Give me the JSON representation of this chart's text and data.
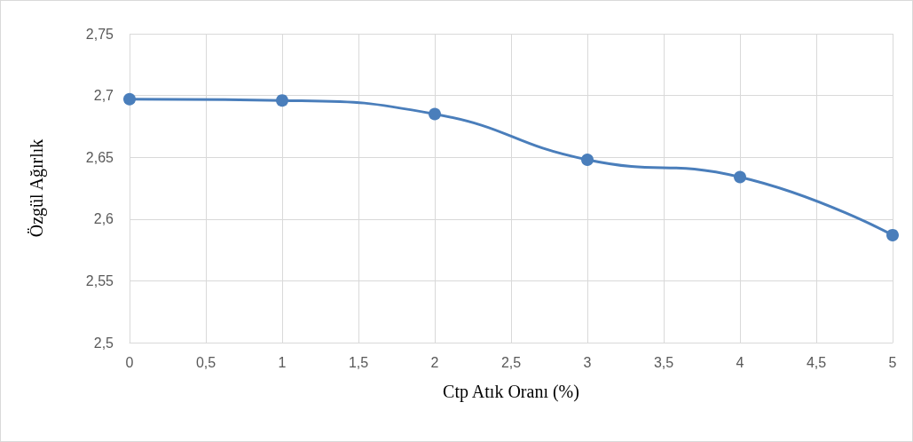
{
  "chart_data": {
    "type": "line",
    "xlabel": "Ctp Atık Oranı (%)",
    "ylabel": "Özgül Ağırlık",
    "x": [
      0,
      1,
      2,
      3,
      4,
      5
    ],
    "series": [
      {
        "color": "#4a7ebb",
        "values": [
          2.697,
          2.696,
          2.685,
          2.648,
          2.634,
          2.587
        ]
      }
    ],
    "xlim": [
      0,
      5
    ],
    "xticks": [
      0,
      {
        "value": 0.5,
        "label": "0,5"
      },
      1,
      {
        "value": 1.5,
        "label": "1,5"
      },
      2,
      {
        "value": 2.5,
        "label": "2,5"
      },
      3,
      {
        "value": 3.5,
        "label": "3,5"
      },
      4,
      {
        "value": 4.5,
        "label": "4,5"
      },
      5
    ],
    "ylim": [
      2.5,
      2.75
    ],
    "yticks": [
      {
        "value": 2.5,
        "label": "2,5"
      },
      {
        "value": 2.55,
        "label": "2,55"
      },
      {
        "value": 2.6,
        "label": "2,6"
      },
      {
        "value": 2.65,
        "label": "2,65"
      },
      {
        "value": 2.7,
        "label": "2,7"
      },
      {
        "value": 2.75,
        "label": "2,75"
      }
    ],
    "grid": true,
    "marker": "circle",
    "line_style": "solid"
  }
}
